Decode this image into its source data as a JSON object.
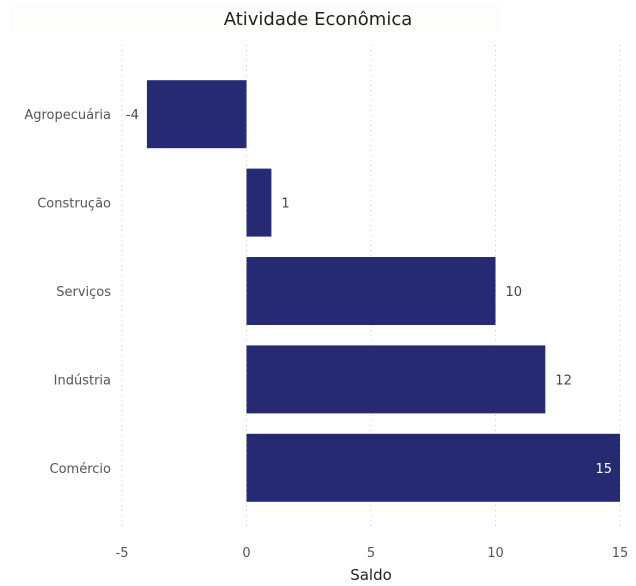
{
  "chart_data": {
    "type": "bar",
    "orientation": "horizontal",
    "title": "Atividade Econômica",
    "xlabel": "Saldo",
    "ylabel": "",
    "categories": [
      "Agropecuária",
      "Construção",
      "Serviços",
      "Indústria",
      "Comércio"
    ],
    "values": [
      -4,
      1,
      10,
      12,
      15
    ],
    "data_labels": [
      "-4",
      "1",
      "10",
      "12",
      "15"
    ],
    "xlim": [
      -5,
      15
    ],
    "x_ticks": [
      -5,
      0,
      5,
      10,
      15
    ],
    "x_tick_labels": [
      "-5",
      "0",
      "5",
      "10",
      "15"
    ],
    "grid": "vertical dotted",
    "bar_color": "#262a72"
  }
}
